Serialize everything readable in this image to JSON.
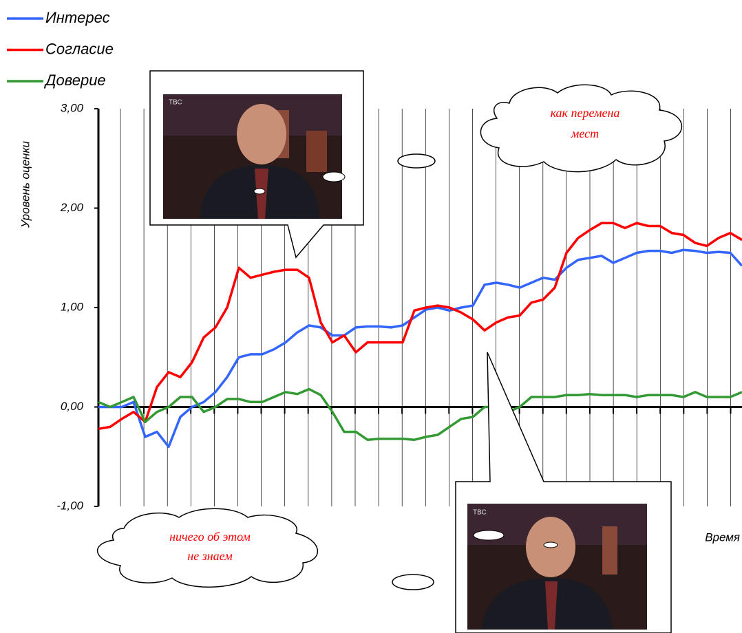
{
  "chart_data": {
    "type": "line",
    "y_label": "Уровень оценки",
    "x_label": "Время",
    "ylim": [
      -1,
      3
    ],
    "yticks": [
      {
        "value": -1,
        "label": "-1,00"
      },
      {
        "value": 0,
        "label": "0,00"
      },
      {
        "value": 1,
        "label": "1,00"
      },
      {
        "value": 2,
        "label": "2,00"
      },
      {
        "value": 3,
        "label": "3,00"
      }
    ],
    "legend": "top-left",
    "series": [
      {
        "name": "Интерес",
        "color": "#3366ff",
        "values": [
          0.0,
          0.0,
          0.0,
          0.05,
          -0.3,
          -0.25,
          -0.4,
          -0.1,
          0.0,
          0.05,
          0.15,
          0.3,
          0.5,
          0.53,
          0.53,
          0.58,
          0.65,
          0.75,
          0.82,
          0.8,
          0.72,
          0.72,
          0.8,
          0.81,
          0.81,
          0.8,
          0.82,
          0.9,
          0.98,
          1.0,
          0.97,
          1.0,
          1.02,
          1.23,
          1.25,
          1.23,
          1.2,
          1.25,
          1.3,
          1.28,
          1.4,
          1.48,
          1.5,
          1.52,
          1.45,
          1.5,
          1.55,
          1.57,
          1.57,
          1.55,
          1.58,
          1.57,
          1.55,
          1.56,
          1.55,
          1.42
        ]
      },
      {
        "name": "Согласие",
        "color": "#ff0000",
        "values": [
          -0.22,
          -0.2,
          -0.12,
          -0.05,
          -0.15,
          0.2,
          0.35,
          0.3,
          0.45,
          0.7,
          0.8,
          1.0,
          1.4,
          1.3,
          1.33,
          1.36,
          1.38,
          1.38,
          1.3,
          0.85,
          0.65,
          0.72,
          0.55,
          0.65,
          0.65,
          0.65,
          0.65,
          0.97,
          1.0,
          1.02,
          1.0,
          0.95,
          0.88,
          0.77,
          0.85,
          0.9,
          0.92,
          1.05,
          1.08,
          1.2,
          1.55,
          1.7,
          1.78,
          1.85,
          1.85,
          1.8,
          1.85,
          1.82,
          1.82,
          1.75,
          1.73,
          1.65,
          1.62,
          1.7,
          1.75,
          1.68
        ]
      },
      {
        "name": "Доверие",
        "color": "#339933",
        "values": [
          0.05,
          0.0,
          0.05,
          0.1,
          -0.15,
          -0.05,
          0.0,
          0.1,
          0.1,
          -0.05,
          0.0,
          0.08,
          0.08,
          0.05,
          0.05,
          0.1,
          0.15,
          0.13,
          0.18,
          0.12,
          -0.05,
          -0.25,
          -0.25,
          -0.33,
          -0.32,
          -0.32,
          -0.32,
          -0.33,
          -0.3,
          -0.28,
          -0.2,
          -0.12,
          -0.1,
          0.0,
          0.0,
          -0.05,
          0.0,
          0.1,
          0.1,
          0.1,
          0.12,
          0.12,
          0.13,
          0.12,
          0.12,
          0.12,
          0.1,
          0.12,
          0.12,
          0.12,
          0.1,
          0.15,
          0.1,
          0.1,
          0.1,
          0.15
        ]
      }
    ],
    "annotations": [
      {
        "lines": [
          "как перемена",
          "мест"
        ]
      },
      {
        "lines": [
          "ничего об этом",
          "не знаем"
        ]
      }
    ],
    "photos": [
      {
        "logo": "ТВС"
      },
      {
        "logo": "ТВС"
      }
    ]
  }
}
